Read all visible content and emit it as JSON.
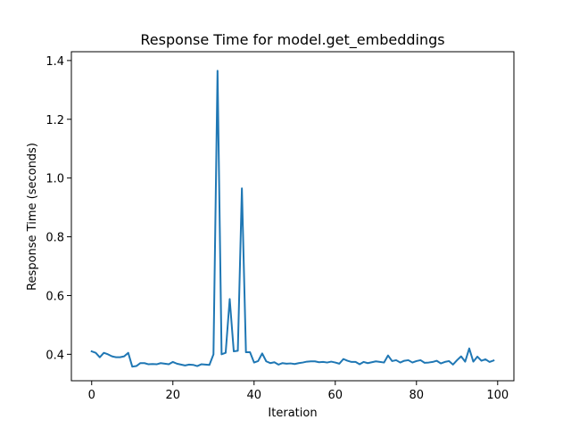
{
  "chart_data": {
    "type": "line",
    "title": "Response Time for model.get_embeddings",
    "xlabel": "Iteration",
    "ylabel": "Response Time (seconds)",
    "xlim": [
      -5,
      104
    ],
    "ylim": [
      0.31,
      1.43
    ],
    "xticks": [
      0,
      20,
      40,
      60,
      80,
      100
    ],
    "yticks": [
      0.4,
      0.6,
      0.8,
      1.0,
      1.2,
      1.4
    ],
    "ytick_labels": [
      "0.4",
      "0.6",
      "0.8",
      "1.0",
      "1.2",
      "1.4"
    ],
    "grid": false,
    "legend": "none",
    "series": [
      {
        "color": "#1f77b4",
        "x": [
          0,
          1,
          2,
          3,
          4,
          5,
          6,
          7,
          8,
          9,
          10,
          11,
          12,
          13,
          14,
          15,
          16,
          17,
          18,
          19,
          20,
          21,
          22,
          23,
          24,
          25,
          26,
          27,
          28,
          29,
          30,
          31,
          32,
          33,
          34,
          35,
          36,
          37,
          38,
          39,
          40,
          41,
          42,
          43,
          44,
          45,
          46,
          47,
          48,
          49,
          50,
          51,
          52,
          53,
          54,
          55,
          56,
          57,
          58,
          59,
          60,
          61,
          62,
          63,
          64,
          65,
          66,
          67,
          68,
          69,
          70,
          71,
          72,
          73,
          74,
          75,
          76,
          77,
          78,
          79,
          80,
          81,
          82,
          83,
          84,
          85,
          86,
          87,
          88,
          89,
          90,
          91,
          92,
          93,
          94,
          95,
          96,
          97,
          98,
          99
        ],
        "y": [
          0.41,
          0.405,
          0.39,
          0.405,
          0.4,
          0.393,
          0.39,
          0.39,
          0.393,
          0.405,
          0.358,
          0.36,
          0.37,
          0.37,
          0.366,
          0.367,
          0.366,
          0.37,
          0.368,
          0.366,
          0.374,
          0.368,
          0.365,
          0.362,
          0.365,
          0.364,
          0.36,
          0.366,
          0.365,
          0.364,
          0.4,
          1.365,
          0.4,
          0.405,
          0.588,
          0.41,
          0.412,
          0.965,
          0.407,
          0.407,
          0.372,
          0.377,
          0.403,
          0.376,
          0.37,
          0.373,
          0.365,
          0.37,
          0.368,
          0.369,
          0.367,
          0.37,
          0.372,
          0.375,
          0.376,
          0.376,
          0.373,
          0.374,
          0.372,
          0.375,
          0.372,
          0.368,
          0.384,
          0.378,
          0.374,
          0.374,
          0.366,
          0.374,
          0.37,
          0.373,
          0.376,
          0.374,
          0.372,
          0.396,
          0.377,
          0.38,
          0.372,
          0.378,
          0.38,
          0.372,
          0.377,
          0.38,
          0.371,
          0.372,
          0.374,
          0.378,
          0.369,
          0.374,
          0.377,
          0.365,
          0.38,
          0.393,
          0.375,
          0.42,
          0.375,
          0.392,
          0.378,
          0.383,
          0.374,
          0.379
        ]
      }
    ]
  }
}
